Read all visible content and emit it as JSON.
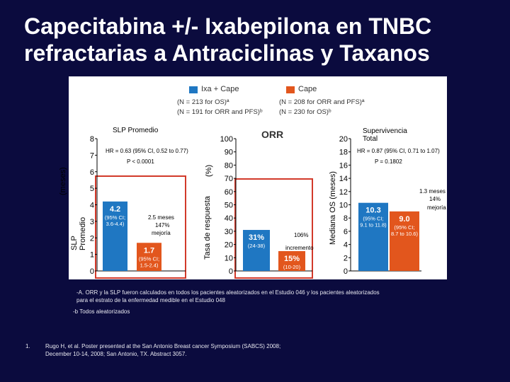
{
  "title_line1": "Capecitabina +/- Ixabepilona en TNBC",
  "title_line2": "refractarias a Antraciclinas y Taxanos",
  "legend": {
    "ixa_label": "Ixa + Cape",
    "ixa_n1": "(N = 213 for OS)ª",
    "ixa_n2": "(N = 191 for ORR and PFS)ᵇ",
    "cape_label": "Cape",
    "cape_n1": "(N = 208 for ORR and PFS)ª",
    "cape_n2": "(N = 230 for OS)ᵇ",
    "ixa_color": "#1f77c2",
    "cape_color": "#e2561d"
  },
  "panels": {
    "pfs_title": "SLP Promedio",
    "pfs_ylabel_a": "(meses)",
    "pfs_ylabel_b": "SLP",
    "pfs_ylabel_c": "Promedio",
    "orr_title": "ORR",
    "orr_ylabel": "Tasa de respuesta",
    "orr_unit": "(%)",
    "os_title_a": "Supervivencia",
    "os_title_b": "Total",
    "os_ylabel": "Mediana OS (meses)"
  },
  "chart_data": [
    {
      "type": "bar",
      "title": "SLP Promedio",
      "ylabel": "(meses)",
      "ylim": [
        0,
        8
      ],
      "yticks": [
        "0",
        "1",
        "2",
        "3",
        "4",
        "5",
        "6",
        "7",
        "8"
      ],
      "series": [
        {
          "name": "Ixa + Cape",
          "values": [
            4.2
          ],
          "label": "4.2",
          "ci": "(95% CI; 3.6-4.4)"
        },
        {
          "name": "Cape",
          "values": [
            1.7
          ],
          "label": "1.7",
          "ci": "(95% CI; 1.5-2.4)"
        }
      ],
      "annotations": {
        "hr": "HR = 0.63 (95% CI, 0.52 to 0.77)",
        "p": "P < 0.0001",
        "diff": "2.5 meses",
        "pct": "147%",
        "word": "mejoría"
      }
    },
    {
      "type": "bar",
      "title": "ORR",
      "ylabel": "Tasa de respuesta",
      "ylim": [
        0,
        100
      ],
      "yticks": [
        "0",
        "10",
        "20",
        "30",
        "40",
        "50",
        "60",
        "70",
        "80",
        "90",
        "100"
      ],
      "series": [
        {
          "name": "Ixa + Cape",
          "values": [
            31
          ],
          "label": "31%",
          "ci": "(24-38)"
        },
        {
          "name": "Cape",
          "values": [
            15
          ],
          "label": "15%",
          "ci": "(10-20)"
        }
      ],
      "annotations": {
        "pct": "106%",
        "word": "incremento"
      }
    },
    {
      "type": "bar",
      "title": "Supervivencia Total",
      "ylabel": "Mediana OS (meses)",
      "ylim": [
        0,
        20
      ],
      "yticks": [
        "0",
        "2",
        "4",
        "6",
        "8",
        "10",
        "12",
        "14",
        "16",
        "18",
        "20"
      ],
      "series": [
        {
          "name": "Ixa + Cape",
          "values": [
            10.3
          ],
          "label": "10.3",
          "ci": "(95% CI; 9.1 to 11.8)"
        },
        {
          "name": "Cape",
          "values": [
            9.0
          ],
          "label": "9.0",
          "ci": "(95% CI; 8.7 to 10.6)"
        }
      ],
      "annotations": {
        "hr": "HR = 0.87 (95% CI, 0.71 to 1.07)",
        "p": "P = 0.1802",
        "diff": "1.3 meses",
        "pct": "14%",
        "word": "mejoría"
      }
    }
  ],
  "footnotes": {
    "a_bullet": "-A.",
    "a_text_1": "ORR y la SLP fueron calculados en todos los pacientes aleatorizados en el Estudio 046 y los pacientes aleatorizados",
    "a_text_2": "para el estrato de la enfermedad medible en el Estudio 048",
    "b_text": "-b Todos aleatorizados",
    "ref_num": "1.",
    "ref_1": "Rugo H, et al. Poster presented at the San Antonio Breast cancer Symposium (SABCS) 2008;",
    "ref_2": "December 10-14, 2008; San Antonio, TX. Abstract 3057."
  }
}
